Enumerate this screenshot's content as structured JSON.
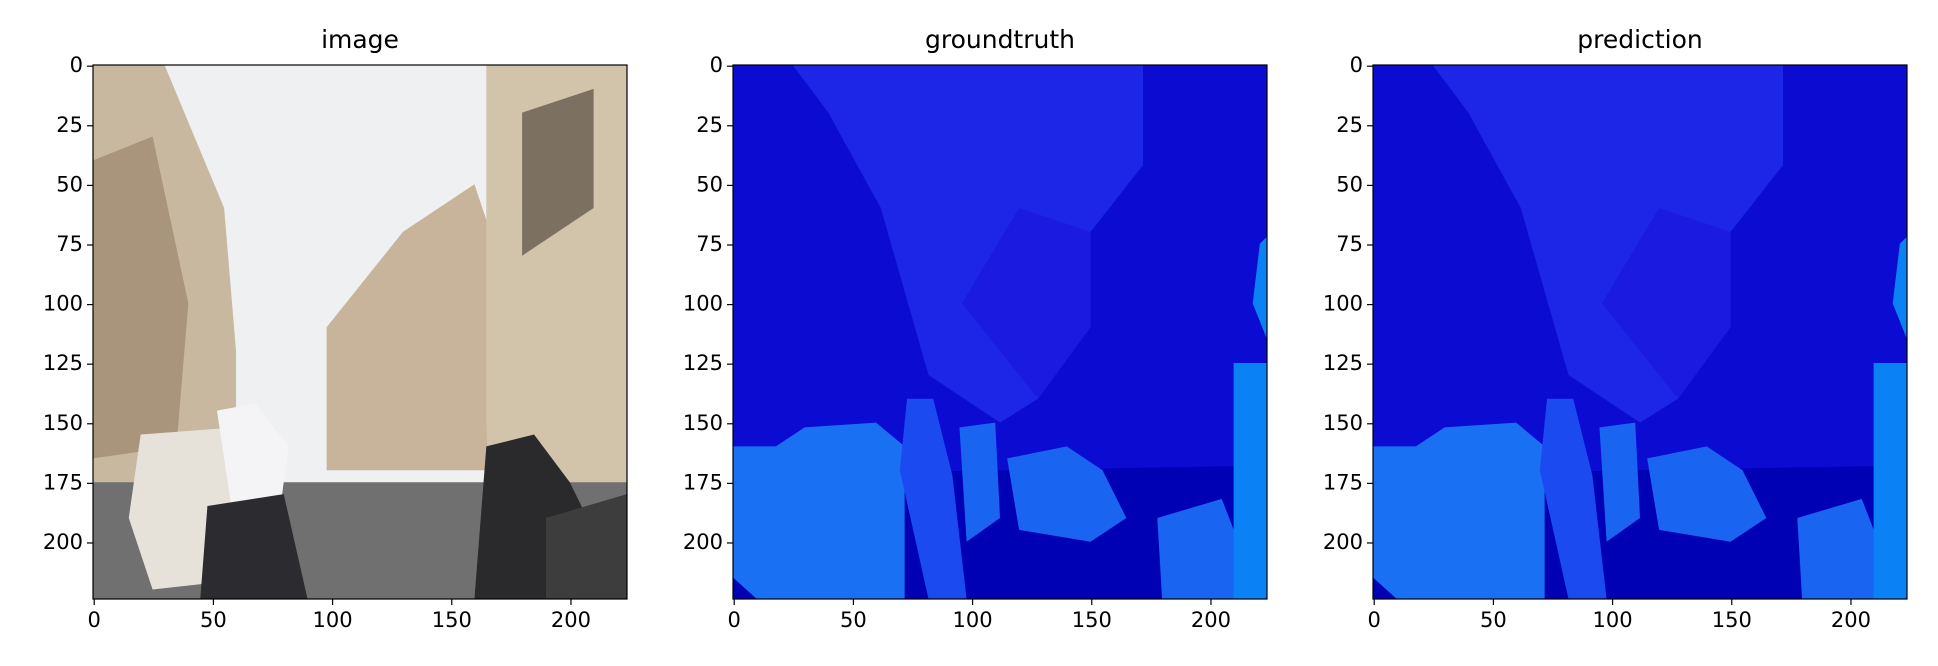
{
  "chart_data": [
    {
      "type": "image",
      "title": "image",
      "xlim": [
        -0.5,
        223.5
      ],
      "ylim": [
        223.5,
        -0.5
      ],
      "xticks": [
        0,
        50,
        100,
        150,
        200
      ],
      "yticks": [
        0,
        25,
        50,
        75,
        100,
        125,
        150,
        175,
        200
      ]
    },
    {
      "type": "image",
      "title": "groundtruth",
      "xlim": [
        -0.5,
        223.5
      ],
      "ylim": [
        223.5,
        -0.5
      ],
      "xticks": [
        0,
        50,
        100,
        150,
        200
      ],
      "yticks": [
        0,
        25,
        50,
        75,
        100,
        125,
        150,
        175,
        200
      ]
    },
    {
      "type": "image",
      "title": "prediction",
      "xlim": [
        -0.5,
        223.5
      ],
      "ylim": [
        223.5,
        -0.5
      ],
      "xticks": [
        0,
        50,
        100,
        150,
        200
      ],
      "yticks": [
        0,
        25,
        50,
        75,
        100,
        125,
        150,
        175,
        200
      ]
    }
  ]
}
